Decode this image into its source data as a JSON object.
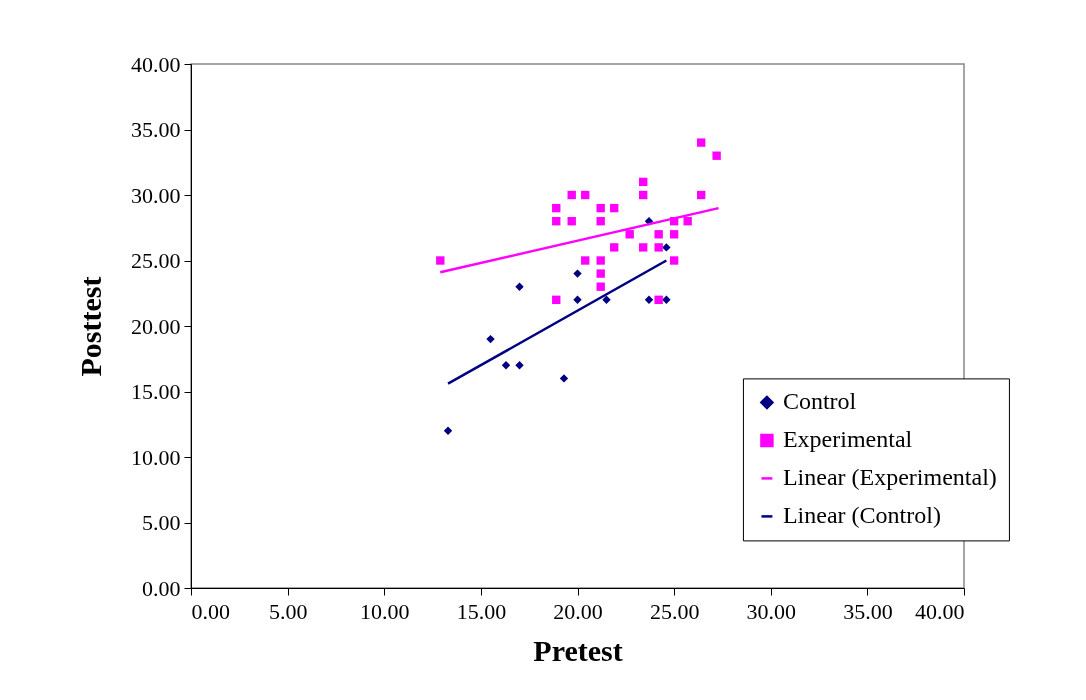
{
  "chart_data": {
    "type": "scatter",
    "xlabel": "Pretest",
    "ylabel": "Posttest",
    "xlim": [
      0,
      40
    ],
    "ylim": [
      0,
      40
    ],
    "xticks": [
      {
        "value": 0,
        "label": "0.00"
      },
      {
        "value": 5,
        "label": "5.00"
      },
      {
        "value": 10,
        "label": "10.00"
      },
      {
        "value": 15,
        "label": "15.00"
      },
      {
        "value": 20,
        "label": "20.00"
      },
      {
        "value": 25,
        "label": "25.00"
      },
      {
        "value": 30,
        "label": "30.00"
      },
      {
        "value": 35,
        "label": "35.00"
      },
      {
        "value": 40,
        "label": "40.00"
      }
    ],
    "yticks": [
      {
        "value": 0,
        "label": "0.00"
      },
      {
        "value": 5,
        "label": "5.00"
      },
      {
        "value": 10,
        "label": "10.00"
      },
      {
        "value": 15,
        "label": "15.00"
      },
      {
        "value": 20,
        "label": "20.00"
      },
      {
        "value": 25,
        "label": "25.00"
      },
      {
        "value": 30,
        "label": "30.00"
      },
      {
        "value": 35,
        "label": "35.00"
      },
      {
        "value": 40,
        "label": "40.00"
      }
    ],
    "grid": false,
    "legend": "bottom right",
    "series": [
      {
        "name": "Control",
        "marker": "diamond",
        "color": "#000080",
        "x": [
          13.3,
          15.5,
          16.3,
          17.0,
          17.0,
          19.3,
          20.0,
          20.0,
          21.5,
          23.7,
          23.7,
          24.6,
          24.6
        ],
        "values": [
          12,
          19,
          17,
          17,
          23,
          16,
          24,
          22,
          22,
          28,
          22,
          26,
          22
        ]
      },
      {
        "name": "Experimental",
        "marker": "square",
        "color": "#ff00ff",
        "x": [
          12.9,
          18.9,
          18.9,
          18.9,
          19.7,
          19.7,
          20.4,
          20.4,
          21.2,
          21.2,
          21.2,
          21.2,
          21.2,
          21.9,
          21.9,
          22.7,
          23.4,
          23.4,
          23.4,
          24.2,
          24.2,
          24.2,
          25.0,
          25.0,
          25.0,
          25.7,
          26.4,
          26.4,
          27.2
        ],
        "values": [
          25,
          29,
          28,
          22,
          30,
          28,
          30,
          25,
          29,
          28,
          25,
          24,
          23,
          29,
          26,
          27,
          31,
          30,
          26,
          27,
          26,
          22,
          28,
          27,
          25,
          28,
          30,
          34,
          33
        ]
      },
      {
        "name": "Linear (Experimental)",
        "type": "line",
        "marker": "none",
        "line_style": "solid",
        "color": "#ff00ff",
        "x": [
          12.9,
          27.3
        ],
        "values": [
          24.1,
          29.0
        ]
      },
      {
        "name": "Linear (Control)",
        "type": "line",
        "marker": "none",
        "line_style": "solid",
        "color": "#000080",
        "x": [
          13.3,
          24.6
        ],
        "values": [
          15.6,
          25.0
        ]
      }
    ]
  }
}
